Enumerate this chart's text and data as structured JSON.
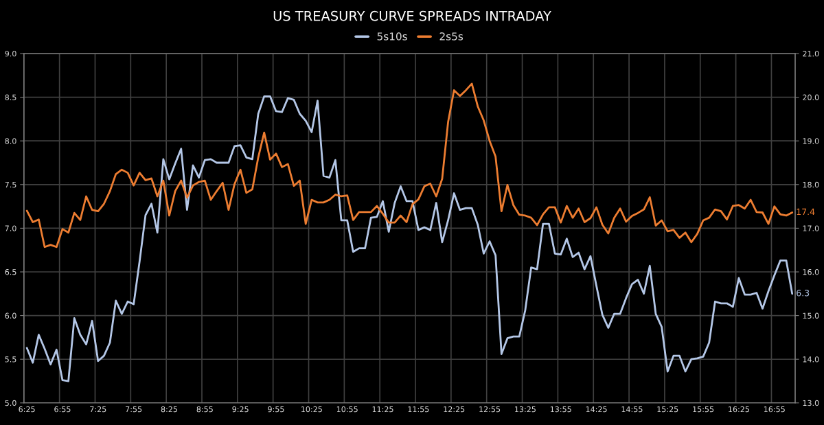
{
  "chart_data": {
    "type": "line",
    "title": "US TREASURY CURVE SPREADS INTRADAY",
    "categories": [
      "6:25",
      null,
      null,
      null,
      null,
      null,
      "6:55",
      null,
      null,
      null,
      null,
      null,
      "7:25",
      null,
      null,
      null,
      null,
      null,
      "7:55",
      null,
      null,
      null,
      null,
      null,
      "8:25",
      null,
      null,
      null,
      null,
      null,
      "8:55",
      null,
      null,
      null,
      null,
      null,
      "9:25",
      null,
      null,
      null,
      null,
      null,
      "9:55",
      null,
      null,
      null,
      null,
      null,
      "10:25",
      null,
      null,
      null,
      null,
      null,
      "10:55",
      null,
      null,
      null,
      null,
      null,
      "11:25",
      null,
      null,
      null,
      null,
      null,
      "11:55",
      null,
      null,
      null,
      null,
      null,
      "12:25",
      null,
      null,
      null,
      null,
      null,
      "12:55",
      null,
      null,
      null,
      null,
      null,
      "13:25",
      null,
      null,
      null,
      null,
      null,
      "13:55",
      null,
      null,
      null,
      null,
      null,
      "14:25",
      null,
      null,
      null,
      null,
      null,
      "14:55",
      null,
      null,
      null,
      null,
      null,
      "15:25",
      null,
      null,
      null,
      null,
      null,
      "15:55",
      null,
      null,
      null,
      null,
      null,
      "16:25",
      null,
      null,
      null,
      null,
      null,
      "16:55",
      null,
      null,
      null
    ],
    "series": [
      {
        "name": "5s10s",
        "color": "#b4c7e7",
        "values": [
          5.63,
          5.46,
          5.78,
          5.62,
          5.44,
          5.61,
          5.26,
          5.25,
          5.97,
          5.78,
          5.67,
          5.94,
          5.48,
          5.54,
          5.69,
          6.17,
          6.02,
          6.16,
          6.13,
          6.62,
          7.15,
          7.28,
          6.95,
          7.79,
          7.56,
          7.74,
          7.91,
          7.21,
          7.72,
          7.58,
          7.78,
          7.79,
          7.75,
          7.75,
          7.75,
          7.94,
          7.95,
          7.81,
          7.79,
          8.31,
          8.51,
          8.51,
          8.34,
          8.33,
          8.49,
          8.47,
          8.31,
          8.23,
          8.1,
          8.46,
          7.6,
          7.58,
          7.78,
          7.09,
          7.09,
          6.73,
          6.77,
          6.77,
          7.12,
          7.13,
          7.31,
          6.96,
          7.29,
          7.48,
          7.31,
          7.31,
          6.98,
          7.01,
          6.98,
          7.29,
          6.84,
          7.09,
          7.4,
          7.21,
          7.23,
          7.23,
          7.04,
          6.71,
          6.85,
          6.69,
          5.56,
          5.74,
          5.76,
          5.76,
          6.06,
          6.55,
          6.53,
          7.05,
          7.05,
          6.71,
          6.7,
          6.88,
          6.67,
          6.72,
          6.53,
          6.68,
          6.34,
          6.01,
          5.86,
          6.02,
          6.02,
          6.2,
          6.36,
          6.41,
          6.25,
          6.57,
          6.02,
          5.87,
          5.36,
          5.54,
          5.54,
          5.36,
          5.5,
          5.51,
          5.53,
          5.69,
          6.16,
          6.14,
          6.14,
          6.1,
          6.43,
          6.24,
          6.24,
          6.26,
          6.08,
          6.28,
          6.46,
          6.63,
          6.63,
          6.25
        ],
        "value_labels": [
          null,
          null,
          null,
          null,
          null,
          null,
          null,
          null,
          null,
          null,
          null,
          null,
          null,
          null,
          null,
          null,
          null,
          null,
          null,
          null,
          null,
          null,
          null,
          null,
          null,
          null,
          null,
          null,
          null,
          null,
          null,
          null,
          null,
          null,
          null,
          null,
          null,
          null,
          null,
          null,
          null,
          null,
          null,
          null,
          null,
          null,
          null,
          null,
          null,
          null,
          null,
          null,
          null,
          null,
          null,
          null,
          null,
          null,
          null,
          null,
          null,
          null,
          null,
          null,
          null,
          null,
          null,
          null,
          null,
          null,
          null,
          null,
          null,
          null,
          null,
          null,
          null,
          null,
          null,
          null,
          null,
          null,
          null,
          null,
          null,
          null,
          null,
          null,
          null,
          null,
          null,
          null,
          null,
          null,
          null,
          null,
          null,
          null,
          null,
          null,
          null,
          null,
          null,
          null,
          null,
          null,
          null,
          null,
          null,
          null,
          null,
          null,
          null,
          null,
          null,
          null,
          null,
          null,
          null,
          null,
          null,
          null,
          null,
          null,
          null,
          null,
          null,
          null,
          null,
          "6.3"
        ]
      },
      {
        "name": "2s5s",
        "color": "#ed7d31",
        "axis": "y2",
        "values": [
          17.4,
          17.14,
          17.2,
          16.57,
          16.62,
          16.57,
          16.98,
          16.9,
          17.35,
          17.19,
          17.73,
          17.42,
          17.39,
          17.56,
          17.85,
          18.24,
          18.34,
          18.27,
          17.98,
          18.27,
          18.1,
          18.14,
          17.73,
          18.09,
          17.29,
          17.85,
          18.09,
          17.7,
          17.98,
          18.06,
          18.09,
          17.65,
          17.85,
          18.04,
          17.42,
          18.01,
          18.34,
          17.81,
          17.89,
          18.62,
          19.19,
          18.57,
          18.71,
          18.4,
          18.47,
          17.97,
          18.09,
          17.1,
          17.65,
          17.59,
          17.59,
          17.65,
          17.77,
          17.73,
          17.75,
          17.19,
          17.37,
          17.37,
          17.37,
          17.51,
          17.33,
          17.13,
          17.13,
          17.29,
          17.14,
          17.55,
          17.66,
          17.96,
          18.02,
          17.73,
          18.13,
          19.43,
          20.16,
          20.03,
          20.16,
          20.31,
          19.79,
          19.47,
          19.0,
          18.64,
          17.39,
          17.99,
          17.53,
          17.31,
          17.29,
          17.24,
          17.07,
          17.32,
          17.48,
          17.48,
          17.13,
          17.51,
          17.24,
          17.45,
          17.14,
          17.23,
          17.48,
          17.08,
          16.88,
          17.24,
          17.45,
          17.15,
          17.28,
          17.35,
          17.43,
          17.71,
          17.06,
          17.18,
          16.93,
          16.96,
          16.78,
          16.9,
          16.68,
          16.87,
          17.18,
          17.24,
          17.43,
          17.39,
          17.2,
          17.51,
          17.53,
          17.45,
          17.65,
          17.37,
          17.36,
          17.1,
          17.5,
          17.32,
          17.29,
          17.36
        ],
        "value_labels": [
          null,
          null,
          null,
          null,
          null,
          null,
          null,
          null,
          null,
          null,
          null,
          null,
          null,
          null,
          null,
          null,
          null,
          null,
          null,
          null,
          null,
          null,
          null,
          null,
          null,
          null,
          null,
          null,
          null,
          null,
          null,
          null,
          null,
          null,
          null,
          null,
          null,
          null,
          null,
          null,
          null,
          null,
          null,
          null,
          null,
          null,
          null,
          null,
          null,
          null,
          null,
          null,
          null,
          null,
          null,
          null,
          null,
          null,
          null,
          null,
          null,
          null,
          null,
          null,
          null,
          null,
          null,
          null,
          null,
          null,
          null,
          null,
          null,
          null,
          null,
          null,
          null,
          null,
          null,
          null,
          null,
          null,
          null,
          null,
          null,
          null,
          null,
          null,
          null,
          null,
          null,
          null,
          null,
          null,
          null,
          null,
          null,
          null,
          null,
          null,
          null,
          null,
          null,
          null,
          null,
          null,
          null,
          null,
          null,
          null,
          null,
          null,
          null,
          null,
          null,
          null,
          null,
          null,
          null,
          null,
          null,
          null,
          null,
          null,
          null,
          null,
          null,
          null,
          null,
          "17.4"
        ]
      }
    ],
    "ylim": [
      5,
      9
    ],
    "yticks": [
      {
        "value": 5,
        "label": "5.0"
      },
      {
        "value": 5.5,
        "label": "5.5"
      },
      {
        "value": 6,
        "label": "6.0"
      },
      {
        "value": 6.5,
        "label": "6.5"
      },
      {
        "value": 7,
        "label": "7.0"
      },
      {
        "value": 7.5,
        "label": "7.5"
      },
      {
        "value": 8,
        "label": "8.0"
      },
      {
        "value": 8.5,
        "label": "8.5"
      },
      {
        "value": 9,
        "label": "9.0"
      }
    ],
    "y2lim": [
      13,
      21
    ],
    "y2ticks": [
      {
        "value": 13,
        "label": "13.0"
      },
      {
        "value": 14,
        "label": "14.0"
      },
      {
        "value": 15,
        "label": "15.0"
      },
      {
        "value": 16,
        "label": "16.0"
      },
      {
        "value": 17,
        "label": "17.0"
      },
      {
        "value": 18,
        "label": "18.0"
      },
      {
        "value": 19,
        "label": "19.0"
      },
      {
        "value": 20,
        "label": "20.0"
      },
      {
        "value": 21,
        "label": "21.0"
      }
    ],
    "grid": true,
    "legend": "top",
    "marker": "none",
    "line_style": "solid"
  }
}
